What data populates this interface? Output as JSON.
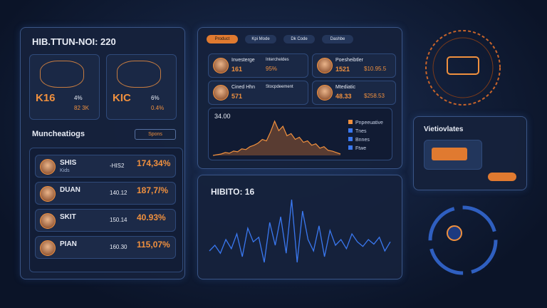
{
  "left_panel": {
    "title": "HIB.TTUN-NOI: 220",
    "cards": [
      {
        "value": "K16",
        "change": "4%",
        "sub": "82 3K"
      },
      {
        "value": "KIC",
        "change": "6%",
        "sub": "0.4%"
      }
    ],
    "section": "Muncheatiogs",
    "dropdown": "Spons",
    "rows": [
      {
        "name": "SHIS",
        "sub": "Kids",
        "amount": "-HIS2",
        "pct": "174,34%"
      },
      {
        "name": "DUAN",
        "amount": "140.12",
        "pct": "187,7/%"
      },
      {
        "name": "SKIT",
        "amount": "150.14",
        "pct": "40.93%"
      },
      {
        "name": "PIAN",
        "amount": "160.30",
        "pct": "115,07%"
      }
    ]
  },
  "top_panel": {
    "tabs": [
      "Product",
      "Kpi Mode",
      "Dk Code",
      "Dashbe"
    ],
    "cards": [
      {
        "label": "Investerge",
        "value": "161",
        "label2": "Intercheldes",
        "value2": "95%"
      },
      {
        "label": "Poesheibtler",
        "value": "1521",
        "value2": "$10.95.5"
      },
      {
        "label": "Cined Hhn",
        "value": "571",
        "label2": "Stocpdeement"
      },
      {
        "label": "Mtediatic",
        "value": "48.33",
        "value2": "$258.53"
      }
    ],
    "chart": {
      "type": "area",
      "title": "34.00",
      "legend": [
        "Pnpeeuative",
        "Tnes",
        "Bnnes",
        "Ftwe"
      ],
      "values": [
        8,
        9,
        10,
        12,
        11,
        14,
        13,
        17,
        16,
        20,
        22,
        25,
        30,
        28,
        40,
        55,
        42,
        48,
        35,
        38,
        30,
        33,
        26,
        28,
        22,
        24,
        18,
        20,
        15,
        14,
        12,
        10
      ]
    }
  },
  "bottom_panel": {
    "title": "HIBITO: 16",
    "chart": {
      "type": "line",
      "values": [
        40,
        45,
        38,
        50,
        42,
        55,
        35,
        60,
        48,
        52,
        30,
        65,
        45,
        70,
        38,
        85,
        30,
        75,
        50,
        40,
        62,
        35,
        58,
        45,
        50,
        42,
        55,
        48,
        44,
        50,
        46,
        52,
        40,
        48
      ]
    }
  },
  "right_panel": {
    "title": "Vietiovlates"
  }
}
